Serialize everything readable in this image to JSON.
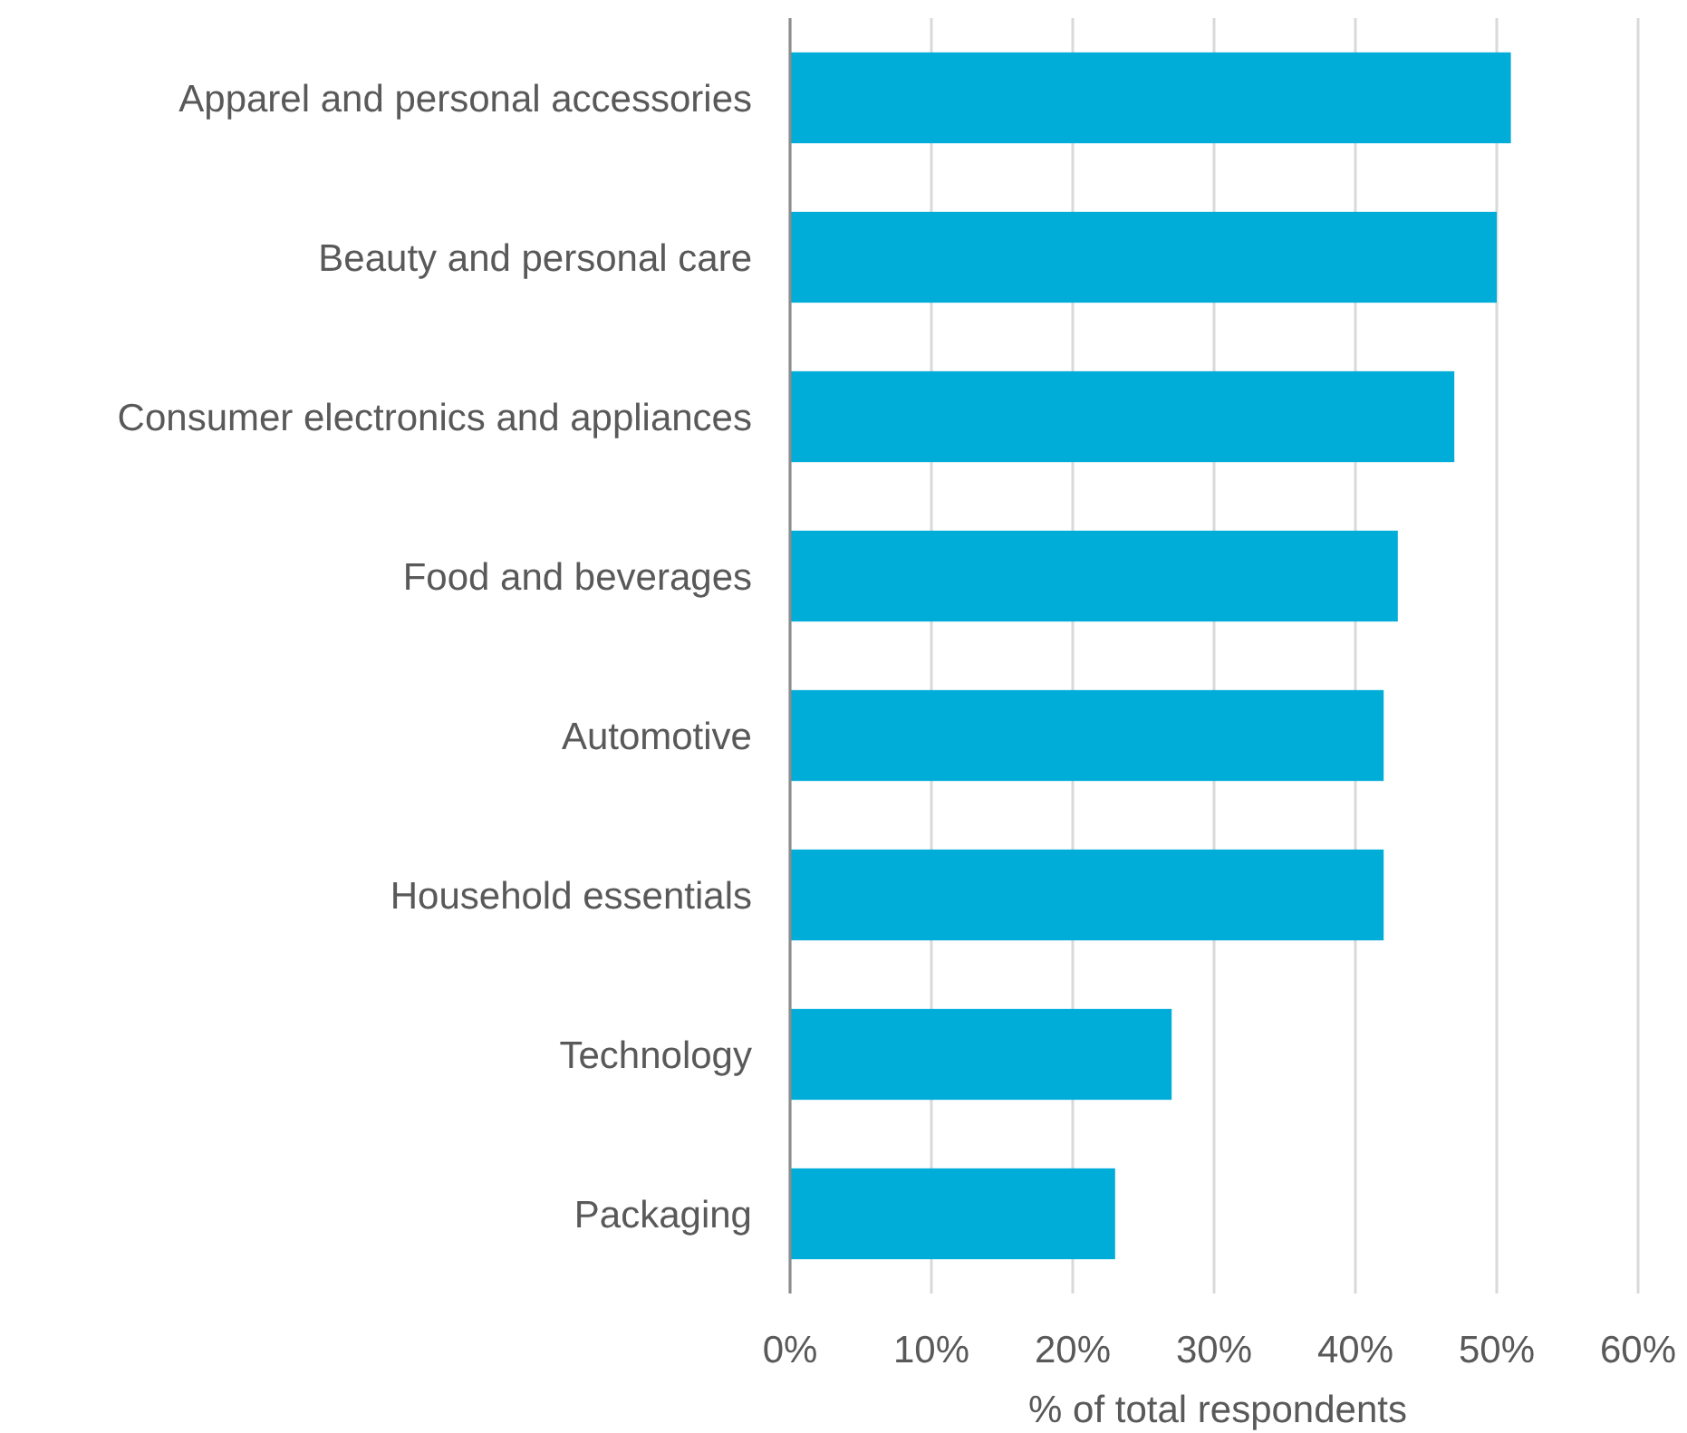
{
  "chart_data": {
    "type": "bar",
    "orientation": "horizontal",
    "xlabel": "% of total respondents",
    "categories": [
      "Apparel and personal accessories",
      "Beauty and personal care",
      "Consumer electronics and appliances",
      "Food and beverages",
      "Automotive",
      "Household essentials",
      "Technology",
      "Packaging"
    ],
    "values": [
      51,
      50,
      47,
      43,
      42,
      42,
      27,
      23
    ],
    "color": "#00acd8",
    "xlim": [
      0,
      60
    ],
    "xticks": [
      {
        "value": 0,
        "label": "0%"
      },
      {
        "value": 10,
        "label": "10%"
      },
      {
        "value": 20,
        "label": "20%"
      },
      {
        "value": 30,
        "label": "30%"
      },
      {
        "value": 40,
        "label": "40%"
      },
      {
        "value": 50,
        "label": "50%"
      },
      {
        "value": 60,
        "label": "60%"
      }
    ],
    "grid": "x"
  }
}
